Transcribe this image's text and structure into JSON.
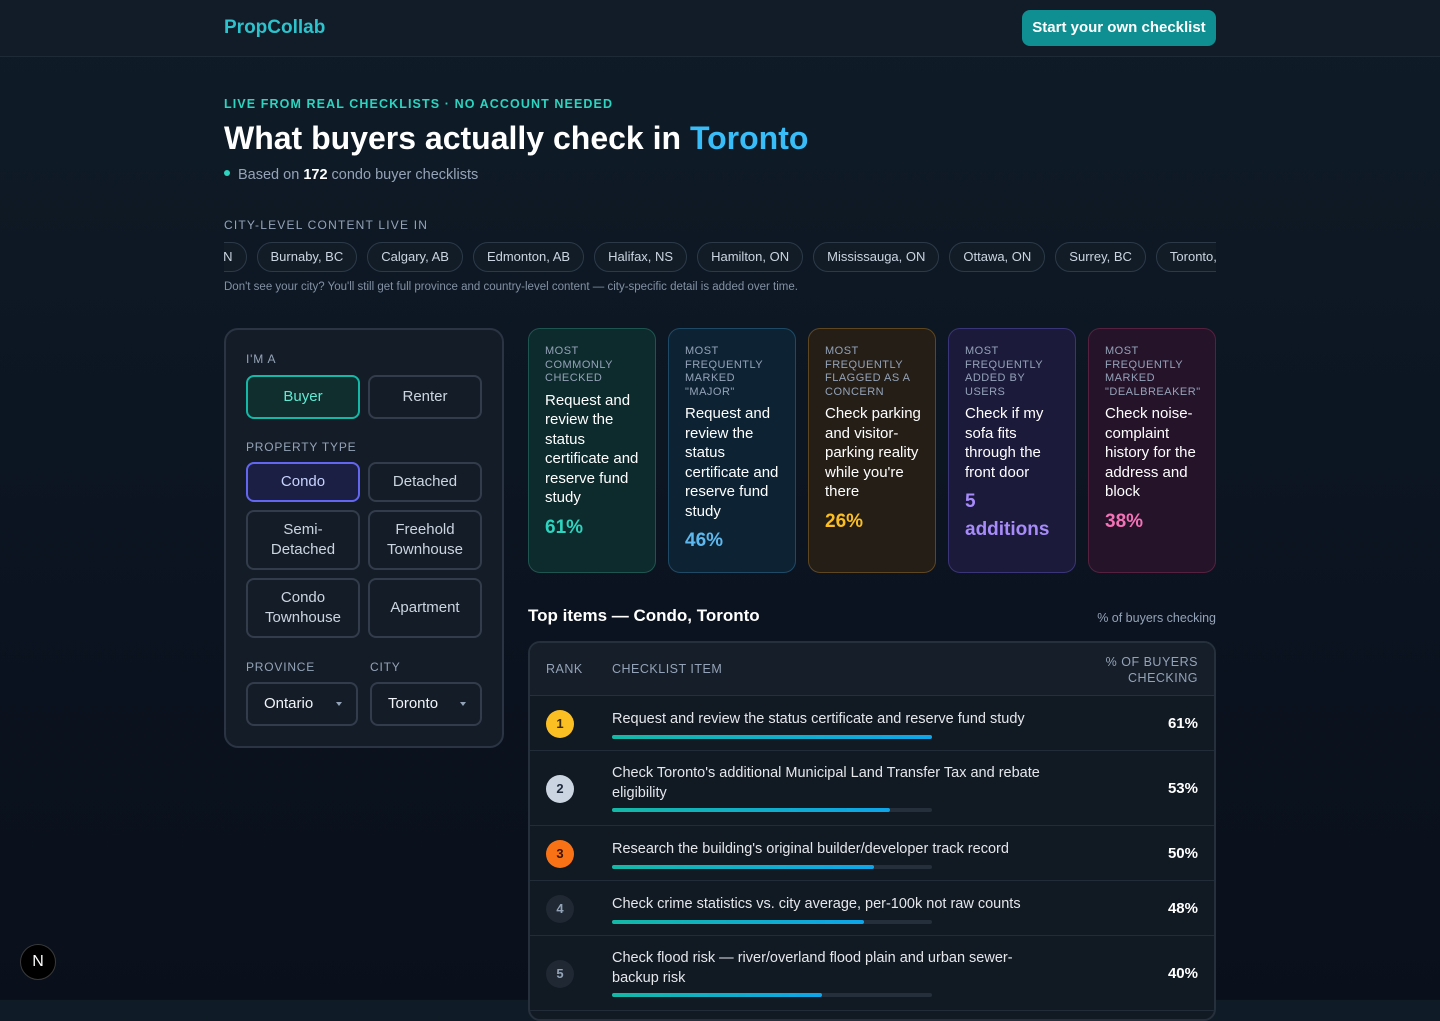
{
  "header": {
    "logo": "PropCollab",
    "cta": "Start your own checklist"
  },
  "hero": {
    "eyebrow": "LIVE FROM REAL CHECKLISTS · NO ACCOUNT NEEDED",
    "title": "What buyers actually check in",
    "city": "Toronto",
    "based_prefix": "Based on",
    "count": 172,
    "based_suffix": "condo buyer checklists"
  },
  "cities": {
    "label": "CITY-LEVEL CONTENT LIVE IN",
    "chips": [
      "ON",
      "Burnaby, BC",
      "Calgary, AB",
      "Edmonton, AB",
      "Halifax, NS",
      "Hamilton, ON",
      "Mississauga, ON",
      "Ottawa, ON",
      "Surrey, BC",
      "Toronto, ON"
    ],
    "note": "Don't see your city? You'll still get full province and country-level content — city-specific detail is added over time."
  },
  "filters": {
    "role_label": "I'M A",
    "roles": [
      "Buyer",
      "Renter"
    ],
    "type_label": "PROPERTY TYPE",
    "types": [
      "Condo",
      "Detached",
      "Semi-Detached",
      "Freehold Townhouse",
      "Condo Townhouse",
      "Apartment"
    ],
    "province_label": "PROVINCE",
    "province": "Ontario",
    "city_label": "CITY",
    "city": "Toronto"
  },
  "cards": [
    {
      "label": "MOST COMMONLY CHECKED",
      "text": "Request and review the status certificate and reserve fund study",
      "stat": "61%"
    },
    {
      "label": "MOST FREQUENTLY MARKED \"MAJOR\"",
      "text": "Request and review the status certificate and reserve fund study",
      "stat": "46%"
    },
    {
      "label": "MOST FREQUENTLY FLAGGED AS A CONCERN",
      "text": "Check parking and visitor-parking reality while you're there",
      "stat": "26%"
    },
    {
      "label": "MOST FREQUENTLY ADDED BY USERS",
      "text": "Check if my sofa fits through the front door",
      "stat": "5 additions"
    },
    {
      "label": "MOST FREQUENTLY MARKED \"DEALBREAKER\"",
      "text": "Check noise-complaint history for the address and block",
      "stat": "38%"
    }
  ],
  "table": {
    "title": "Top items — Condo, Toronto",
    "unit_note": "% of buyers checking",
    "columns": [
      "RANK",
      "CHECKLIST ITEM",
      "% OF BUYERS CHECKING"
    ],
    "rows": [
      {
        "rank": 1,
        "item": "Request and review the status certificate and reserve fund study",
        "pct": "61%"
      },
      {
        "rank": 2,
        "item": "Check Toronto's additional Municipal Land Transfer Tax and rebate eligibility",
        "pct": "53%"
      },
      {
        "rank": 3,
        "item": "Research the building's original builder/developer track record",
        "pct": "50%"
      },
      {
        "rank": 4,
        "item": "Check crime statistics vs. city average, per-100k not raw counts",
        "pct": "48%"
      },
      {
        "rank": 5,
        "item": "Check flood risk — river/overland flood plain and urban sewer-backup risk",
        "pct": "40%"
      }
    ]
  },
  "badge": "N"
}
